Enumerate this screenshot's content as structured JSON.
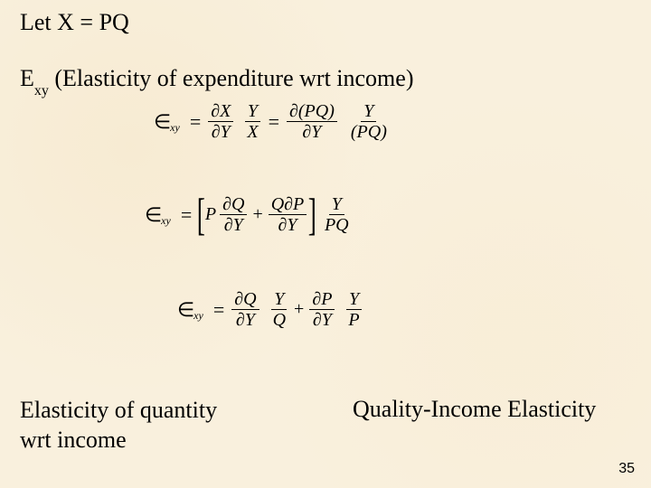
{
  "colors": {
    "background_base": "#f9f0dd",
    "text": "#000000",
    "rule": "#000000"
  },
  "typography": {
    "body_family": "Times New Roman",
    "body_size_pt": 20,
    "math_size_pt": 16,
    "pagenum_family": "Arial",
    "pagenum_size_pt": 12
  },
  "text": {
    "line1_pre": "Let X = PQ",
    "line2_sym": "E",
    "line2_sub": "xy",
    "line2_rest": " (Elasticity of expenditure wrt income)",
    "bottom_left_l1": "Elasticity of quantity",
    "bottom_left_l2": "wrt income",
    "bottom_right": "Quality-Income Elasticity",
    "pagenum": "35"
  },
  "math": {
    "epsilon_glyph": "∈",
    "epsilon_sub": "xy",
    "partial_glyph": "∂",
    "eq1": {
      "f1_num": "∂X",
      "f1_den": "∂Y",
      "f2_num": "Y",
      "f2_den": "X",
      "f3_num": "∂(PQ)",
      "f3_den": "∂Y",
      "f4_num": "Y",
      "f4_den": "(PQ)"
    },
    "eq2": {
      "t1_coef": "P",
      "t1_num": "∂Q",
      "t1_den": "∂Y",
      "t2_num": "Q∂P",
      "t2_den": "∂Y",
      "out_num": "Y",
      "out_den": "PQ"
    },
    "eq3": {
      "a_num": "∂Q",
      "a_den": "∂Y",
      "b_num": "Y",
      "b_den": "Q",
      "c_num": "∂P",
      "c_den": "∂Y",
      "d_num": "Y",
      "d_den": "P"
    }
  }
}
